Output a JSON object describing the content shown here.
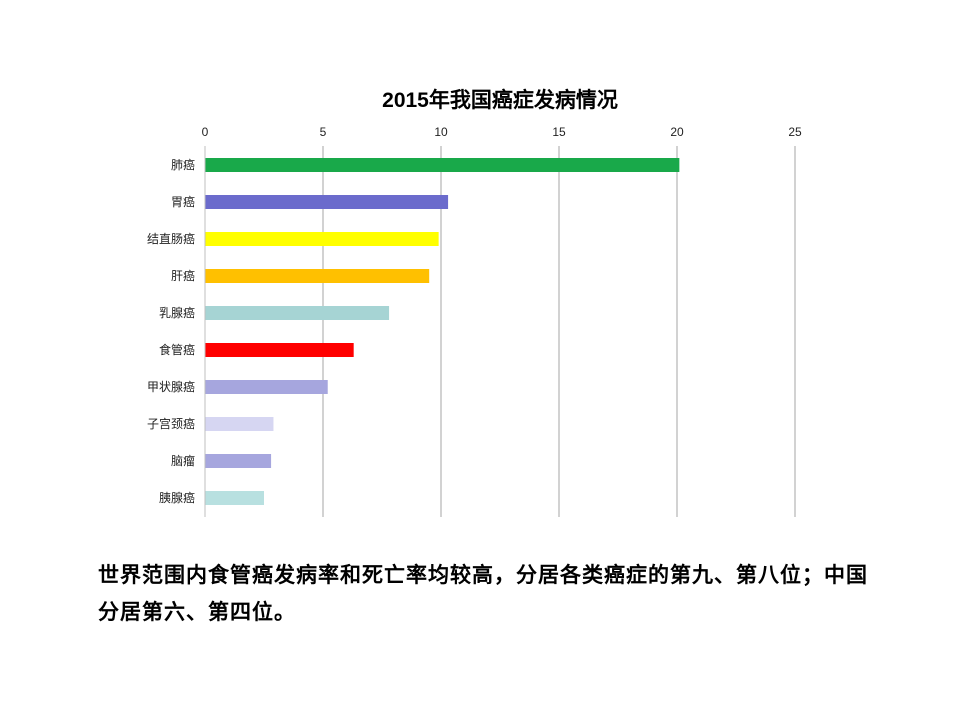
{
  "chart_data": {
    "type": "bar",
    "orientation": "horizontal",
    "title": "2015年我国癌症发病情况",
    "categories": [
      "肺癌",
      "胃癌",
      "结直肠癌",
      "肝癌",
      "乳腺癌",
      "食管癌",
      "甲状腺癌",
      "子宫颈癌",
      "脑瘤",
      "胰腺癌"
    ],
    "values": [
      20.1,
      10.3,
      9.9,
      9.5,
      7.8,
      6.3,
      5.2,
      2.9,
      2.8,
      2.5
    ],
    "colors": [
      "#19a94a",
      "#6b6bcc",
      "#ffff00",
      "#ffc000",
      "#a6d4d4",
      "#ff0000",
      "#a6a6de",
      "#d6d6f2",
      "#a6a6de",
      "#b8e0e0"
    ],
    "xlim": [
      0,
      25
    ],
    "xticks": [
      "0",
      "5",
      "10",
      "15",
      "20",
      "25"
    ],
    "x_axis_position": "top",
    "grid": true,
    "xlabel": "",
    "ylabel": ""
  },
  "caption": "世界范围内食管癌发病率和死亡率均较高，分居各类癌症的第九、第八位；中国分居第六、第四位。"
}
